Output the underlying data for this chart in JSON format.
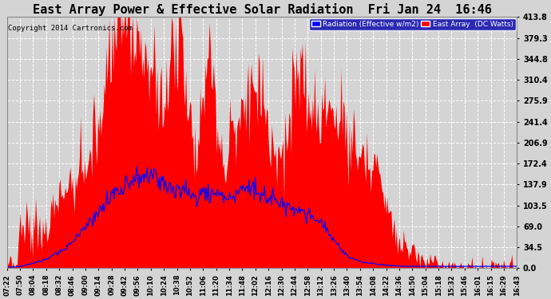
{
  "title": "East Array Power & Effective Solar Radiation  Fri Jan 24  16:46",
  "copyright": "Copyright 2014 Cartronics.com",
  "legend_labels": [
    "Radiation (Effective w/m2)",
    "East Array  (DC Watts)"
  ],
  "legend_colors": [
    "#0000ff",
    "#ff0000"
  ],
  "yticks": [
    0.0,
    34.5,
    69.0,
    103.5,
    137.9,
    172.4,
    206.9,
    241.4,
    275.9,
    310.4,
    344.8,
    379.3,
    413.8
  ],
  "ymax": 413.8,
  "ymin": 0.0,
  "background_color": "#d4d4d4",
  "plot_bg_color": "#d4d4d4",
  "title_fontsize": 11,
  "grid_color": "#ffffff",
  "fill_color": "#ff0000",
  "line_color": "#0000ff",
  "x_tick_labels": [
    "07:22",
    "07:50",
    "08:04",
    "08:18",
    "08:32",
    "08:46",
    "09:00",
    "09:14",
    "09:28",
    "09:42",
    "09:56",
    "10:10",
    "10:24",
    "10:38",
    "10:52",
    "11:06",
    "11:20",
    "11:34",
    "11:48",
    "12:02",
    "12:16",
    "12:30",
    "12:44",
    "12:58",
    "13:12",
    "13:26",
    "13:40",
    "13:54",
    "14:08",
    "14:22",
    "14:36",
    "14:50",
    "15:04",
    "15:18",
    "15:32",
    "15:46",
    "16:01",
    "16:15",
    "16:29",
    "16:43"
  ],
  "power_base": [
    2,
    3,
    8,
    20,
    35,
    55,
    90,
    120,
    130,
    160,
    180,
    200,
    370,
    413,
    380,
    360,
    340,
    300,
    260,
    340,
    380,
    260,
    200,
    320,
    280,
    150,
    200,
    250,
    280,
    310,
    240,
    200,
    170,
    280,
    310,
    240,
    250,
    280,
    260,
    240,
    210,
    190,
    180,
    160,
    100,
    60,
    40,
    25,
    15,
    8,
    5,
    4,
    3,
    2,
    2,
    1,
    1,
    1,
    1,
    1
  ],
  "rad_base": [
    2,
    2,
    4,
    8,
    12,
    18,
    25,
    35,
    50,
    65,
    80,
    100,
    115,
    130,
    142,
    148,
    150,
    145,
    138,
    132,
    128,
    122,
    118,
    120,
    125,
    118,
    115,
    130,
    138,
    132,
    118,
    110,
    105,
    100,
    95,
    90,
    80,
    65,
    45,
    25,
    15,
    10,
    8,
    6,
    5,
    4,
    3,
    3,
    3,
    3,
    3,
    3,
    3,
    3,
    3,
    3,
    3,
    3,
    3,
    3
  ]
}
